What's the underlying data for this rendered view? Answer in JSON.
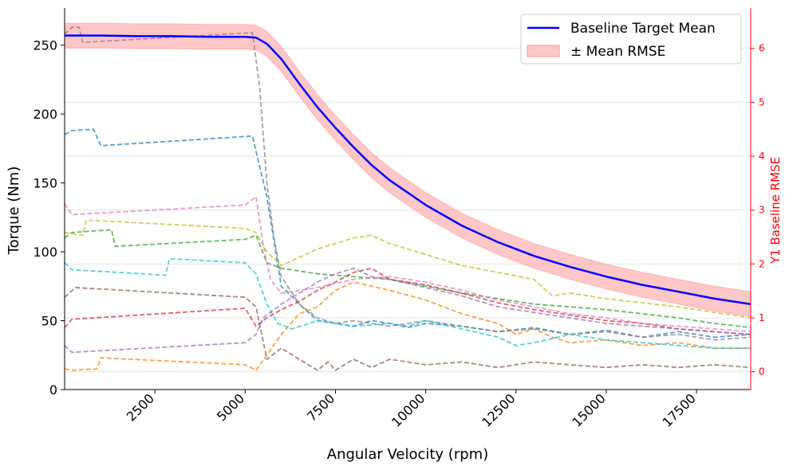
{
  "chart_data": {
    "type": "line",
    "xlabel": "Angular Velocity (rpm)",
    "ylabel": "Torque (Nm)",
    "y2label": "Y1 Baseline RMSE",
    "xlim": [
      0,
      19000
    ],
    "ylim": [
      0,
      277
    ],
    "y2lim": [
      -0.33,
      6.75
    ],
    "xticks": [
      2500,
      5000,
      7500,
      10000,
      12500,
      15000,
      17500
    ],
    "yticks": [
      0,
      50,
      100,
      150,
      200,
      250
    ],
    "y2ticks": [
      0,
      1,
      2,
      3,
      4,
      5,
      6
    ],
    "grid": "horizontal",
    "legend_position": "top-right",
    "legend": [
      {
        "label": "Baseline Target Mean",
        "kind": "line",
        "color": "#0000ff"
      },
      {
        "label": "± Mean RMSE",
        "kind": "patch",
        "color": "#ff9999"
      }
    ],
    "baseline": {
      "name": "Baseline Target Mean",
      "color": "#0000ff",
      "rmse": 9,
      "x": [
        0,
        1000,
        2000,
        3000,
        4000,
        5000,
        5300,
        5600,
        6000,
        6500,
        7000,
        7500,
        8000,
        8500,
        9000,
        9500,
        10000,
        11000,
        12000,
        13000,
        14000,
        15000,
        16000,
        17000,
        18000,
        19000
      ],
      "y": [
        257,
        257,
        256.5,
        256.5,
        256,
        256,
        255.5,
        251,
        240,
        222,
        205,
        190,
        176,
        163,
        152,
        143,
        134,
        119,
        107,
        97,
        89,
        82,
        76,
        71,
        66,
        62
      ]
    },
    "series": [
      {
        "color": "#1f77b4",
        "x": [
          0,
          200,
          800,
          1000,
          5200,
          5600,
          6000,
          6500,
          7000,
          7500,
          8000,
          8500,
          9000,
          9500,
          10000,
          11000,
          12000,
          13000,
          14000,
          15000,
          16000,
          17000,
          18000,
          19000
        ],
        "y": [
          185,
          188,
          189,
          177,
          184,
          140,
          75,
          62,
          50,
          48,
          46,
          50,
          48,
          45,
          48,
          46,
          42,
          45,
          40,
          43,
          38,
          42,
          38,
          40
        ]
      },
      {
        "color": "#ff7f0e",
        "x": [
          0,
          200,
          900,
          1000,
          5000,
          5300,
          5600,
          6000,
          6500,
          7000,
          7500,
          8000,
          9000,
          10000,
          11000,
          12000,
          12500,
          13000,
          13500,
          14000,
          15000,
          16000,
          17000,
          18000,
          19000
        ],
        "y": [
          15,
          14,
          15,
          23,
          18,
          14,
          25,
          40,
          55,
          60,
          72,
          78,
          72,
          65,
          55,
          48,
          40,
          44,
          38,
          34,
          36,
          32,
          34,
          30,
          30
        ]
      },
      {
        "color": "#2ca02c",
        "x": [
          0,
          200,
          1300,
          1400,
          5000,
          5300,
          5600,
          6000,
          7000,
          8000,
          9000,
          10000,
          11000,
          12000,
          13000,
          14000,
          15000,
          16000,
          17000,
          18000,
          19000
        ],
        "y": [
          110,
          114,
          116,
          104,
          109,
          112,
          92,
          88,
          84,
          82,
          80,
          75,
          70,
          66,
          62,
          60,
          58,
          55,
          52,
          48,
          45
        ]
      },
      {
        "color": "#d62728",
        "x": [
          0,
          200,
          5000,
          5300,
          5600,
          6000,
          6500,
          7000,
          7500,
          8000,
          8500,
          9000,
          10000,
          11000,
          12000,
          13000,
          14000,
          15000,
          16000,
          17000,
          18000,
          19000
        ],
        "y": [
          45,
          51,
          59,
          46,
          52,
          58,
          64,
          72,
          78,
          85,
          88,
          80,
          76,
          70,
          63,
          58,
          54,
          50,
          48,
          44,
          42,
          40
        ]
      },
      {
        "color": "#9467bd",
        "x": [
          0,
          200,
          5000,
          5300,
          5500,
          6000,
          6500,
          7000,
          7500,
          8000,
          8500,
          9000,
          10000,
          11000,
          12000,
          13000,
          14000,
          15000,
          16000,
          17000,
          18000,
          19000
        ],
        "y": [
          32,
          27,
          34,
          40,
          52,
          62,
          70,
          78,
          84,
          88,
          82,
          80,
          74,
          68,
          60,
          56,
          52,
          48,
          46,
          44,
          42,
          40
        ]
      },
      {
        "color": "#8c564b",
        "x": [
          0,
          300,
          5000,
          5300,
          5600,
          6000,
          6500,
          7000,
          7300,
          7500,
          8000,
          8500,
          9000,
          9500,
          10000,
          11000,
          12000,
          13000,
          14000,
          15000,
          16000,
          17000,
          18000,
          19000
        ],
        "y": [
          67,
          74,
          67,
          60,
          22,
          30,
          22,
          14,
          20,
          14,
          22,
          16,
          22,
          20,
          18,
          20,
          16,
          20,
          18,
          16,
          18,
          16,
          18,
          16
        ]
      },
      {
        "color": "#e377c2",
        "x": [
          0,
          200,
          5000,
          5300,
          5500,
          5700,
          6000,
          7000,
          8000,
          9000,
          10000,
          11000,
          12000,
          13000,
          14000,
          15000,
          16000,
          17000,
          18000,
          19000
        ],
        "y": [
          135,
          127,
          134,
          140,
          105,
          80,
          70,
          74,
          80,
          82,
          78,
          72,
          65,
          60,
          55,
          52,
          48,
          46,
          44,
          42
        ]
      },
      {
        "color": "#7f7f7f",
        "x": [
          0,
          200,
          400,
          500,
          5200,
          5400,
          5600,
          5800,
          6000,
          6500,
          7000,
          7500,
          8000,
          9000,
          10000,
          11000,
          12000,
          13000,
          14000,
          15000,
          16000,
          17000,
          18000,
          19000
        ],
        "y": [
          258,
          263,
          263,
          252,
          259,
          220,
          150,
          110,
          82,
          62,
          52,
          48,
          50,
          46,
          50,
          46,
          42,
          44,
          40,
          42,
          38,
          40,
          36,
          38
        ]
      },
      {
        "color": "#bcbd22",
        "x": [
          0,
          500,
          600,
          5000,
          5300,
          5600,
          6000,
          6500,
          7000,
          7500,
          8000,
          8500,
          9000,
          9500,
          10000,
          11000,
          12000,
          13000,
          13500,
          14000,
          15000,
          16000,
          17000,
          18000,
          19000
        ],
        "y": [
          114,
          112,
          123,
          117,
          114,
          100,
          90,
          96,
          102,
          106,
          110,
          112,
          106,
          102,
          98,
          90,
          85,
          80,
          68,
          70,
          66,
          63,
          60,
          56,
          52
        ]
      },
      {
        "color": "#17becf",
        "x": [
          0,
          200,
          2800,
          2900,
          5000,
          5300,
          5600,
          5900,
          6300,
          7000,
          8000,
          9000,
          9500,
          10000,
          11000,
          12000,
          12500,
          13000,
          14000,
          15000,
          16000,
          17000,
          18000,
          19000
        ],
        "y": [
          92,
          87,
          83,
          95,
          92,
          84,
          62,
          48,
          44,
          50,
          46,
          48,
          46,
          50,
          44,
          38,
          32,
          34,
          40,
          36,
          34,
          32,
          30,
          30
        ]
      }
    ]
  }
}
